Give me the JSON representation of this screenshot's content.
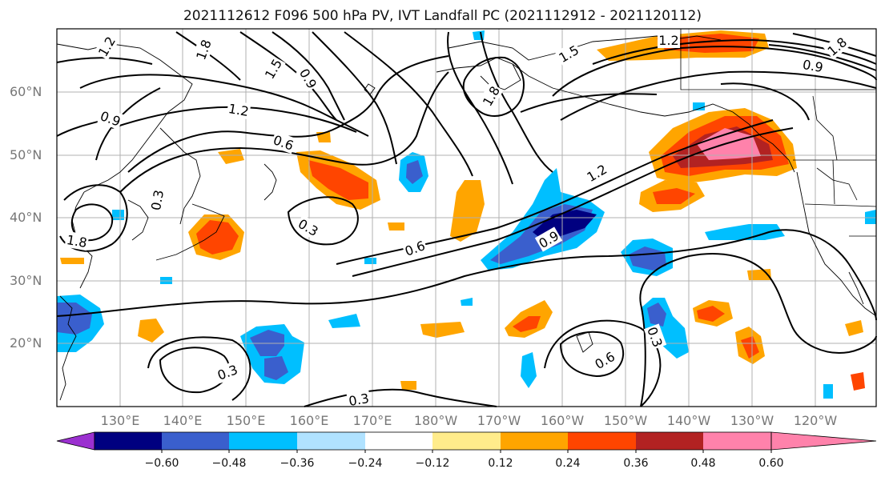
{
  "title": "2021112612 F096 500 hPa PV, IVT Landfall PC (2021112912 - 2021120112)",
  "lat_labels": [
    "60°N",
    "50°N",
    "40°N",
    "30°N",
    "20°N"
  ],
  "lon_labels": [
    "130°E",
    "140°E",
    "150°E",
    "160°E",
    "170°E",
    "180°W",
    "170°W",
    "160°W",
    "150°W",
    "140°W",
    "130°W",
    "120°W"
  ],
  "contour_labels": [
    "1.2",
    "1.8",
    "1.5",
    "0.9",
    "1.2",
    "0.9",
    "0.6",
    "0.3",
    "1.8",
    "0.3",
    "1.2",
    "0.6",
    "0.9",
    "1.5",
    "1.8",
    "1.2",
    "0.9",
    "0.3",
    "0.6",
    "0.3",
    "0.3",
    "1.8"
  ],
  "colorbar": {
    "labels": [
      "−0.60",
      "−0.48",
      "−0.36",
      "−0.24",
      "−0.12",
      "0.12",
      "0.24",
      "0.36",
      "0.48",
      "0.60"
    ],
    "colors": [
      "#9b30d0",
      "#000080",
      "#3a5fcd",
      "#00bfff",
      "#b0e2ff",
      "#ffffff",
      "#ffec8b",
      "#ffa500",
      "#ff4500",
      "#b22222",
      "#ff82ab"
    ]
  }
}
